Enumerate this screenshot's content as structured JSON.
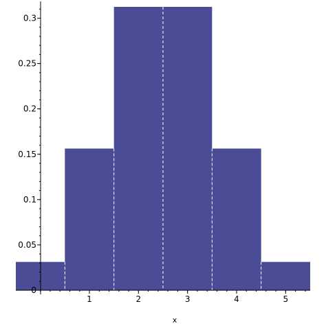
{
  "chart_data": {
    "type": "bar",
    "title": "",
    "xlabel": "x",
    "ylabel": "",
    "x_ticks": [
      "1",
      "2",
      "3",
      "4",
      "5"
    ],
    "y_ticks": [
      "0",
      "0.05",
      "0.1",
      "0.15",
      "0.2",
      "0.25",
      "0.3"
    ],
    "xlim": [
      -0.5,
      5.5
    ],
    "ylim": [
      0,
      0.3125
    ],
    "bar_color": "#4a4c96",
    "bars": [
      {
        "x": 0,
        "value": 0.03125
      },
      {
        "x": 1,
        "value": 0.15625
      },
      {
        "x": 2,
        "value": 0.3125
      },
      {
        "x": 3,
        "value": 0.3125
      },
      {
        "x": 4,
        "value": 0.15625
      },
      {
        "x": 5,
        "value": 0.03125
      }
    ],
    "grid": false,
    "legend": "none"
  }
}
